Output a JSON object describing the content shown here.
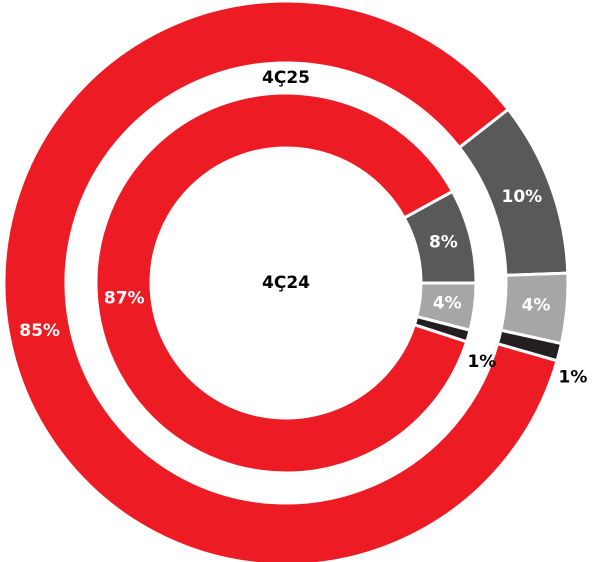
{
  "chart_data": {
    "type": "donut",
    "colors": [
      "#ed1c24",
      "#595959",
      "#a6a6a6",
      "#231f20"
    ],
    "series": [
      {
        "name": "4Ç25",
        "values": [
          85,
          10,
          4,
          1
        ],
        "value_labels": [
          "85%",
          "10%",
          "4%",
          "1%"
        ]
      },
      {
        "name": "4Ç24",
        "values": [
          87,
          8,
          4,
          1
        ],
        "value_labels": [
          "87%",
          "8%",
          "4%",
          "1%"
        ]
      }
    ]
  }
}
